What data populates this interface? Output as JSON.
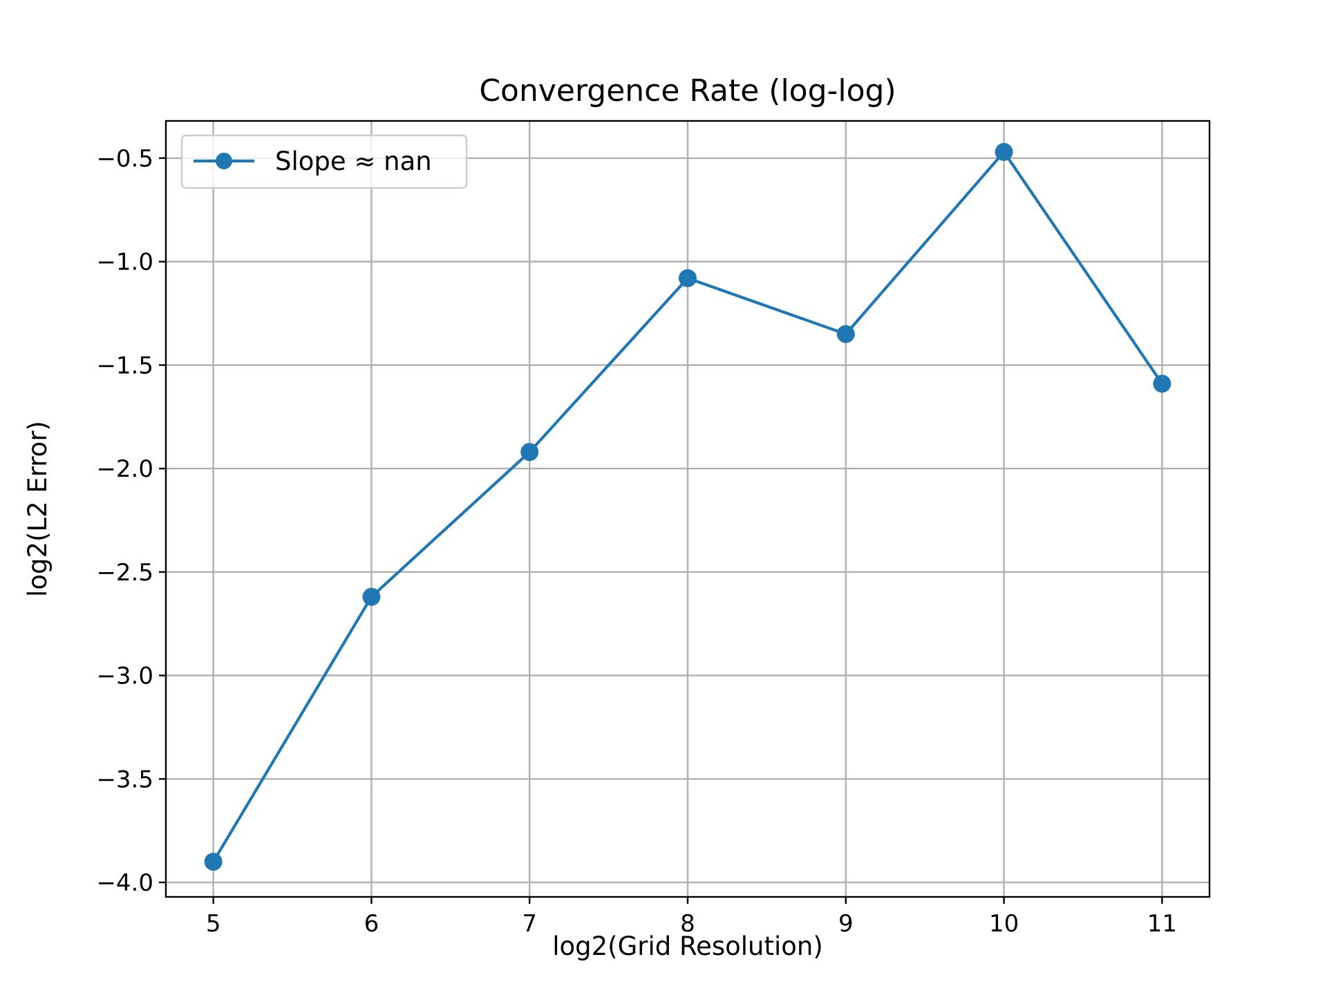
{
  "chart_data": {
    "type": "line",
    "title": "Convergence Rate (log-log)",
    "xlabel": "log2(Grid Resolution)",
    "ylabel": "log2(L2 Error)",
    "xlim": [
      4.7,
      11.3
    ],
    "ylim": [
      -4.07,
      -0.32
    ],
    "xticks": [
      5,
      6,
      7,
      8,
      9,
      10,
      11
    ],
    "xtick_labels": [
      "5",
      "6",
      "7",
      "8",
      "9",
      "10",
      "11"
    ],
    "yticks": [
      -4.0,
      -3.5,
      -3.0,
      -2.5,
      -2.0,
      -1.5,
      -1.0,
      -0.5
    ],
    "ytick_labels": [
      "−4.0",
      "−3.5",
      "−3.0",
      "−2.5",
      "−2.0",
      "−1.5",
      "−1.0",
      "−0.5"
    ],
    "grid": true,
    "legend_position": "top-left",
    "series": [
      {
        "name": "Slope ≈ nan",
        "color": "#1f77b4",
        "marker": "circle",
        "x": [
          5,
          6,
          7,
          8,
          9,
          10,
          11
        ],
        "y": [
          -3.9,
          -2.62,
          -1.92,
          -1.08,
          -1.35,
          -0.47,
          -1.59
        ]
      }
    ]
  }
}
